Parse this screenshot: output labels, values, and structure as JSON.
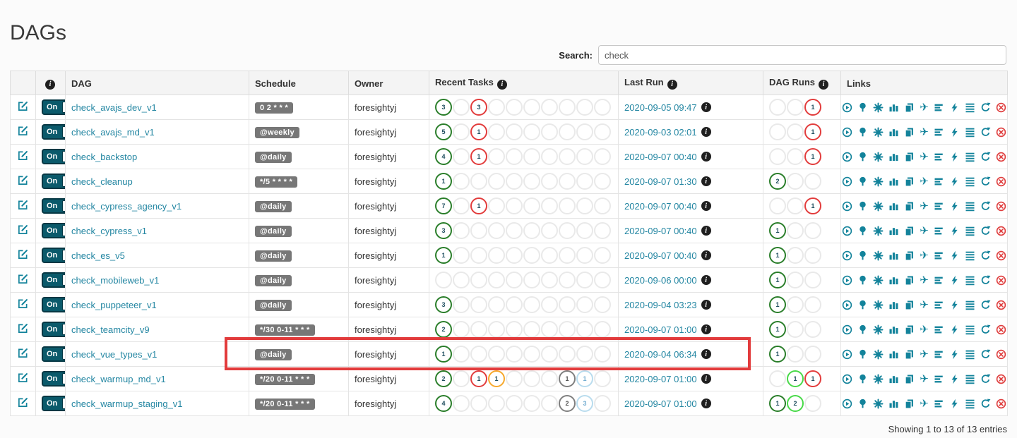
{
  "page": {
    "title": "DAGs"
  },
  "search": {
    "label": "Search:",
    "value": "check"
  },
  "table": {
    "headers": {
      "dag": "DAG",
      "schedule": "Schedule",
      "owner": "Owner",
      "recent_tasks": "Recent Tasks",
      "last_run": "Last Run",
      "dag_runs": "DAG Runs",
      "links": "Links"
    },
    "recent_task_slots": 10,
    "dag_run_slots": 3,
    "state_colors": {
      "success": "#2a7e2a",
      "running": "#47d947",
      "failed": "#e23c3c",
      "upstream_failed": "#f7a82b",
      "queued": "#7f7f7f",
      "none": "#b9dcee",
      "empty": "#e9e9e9"
    },
    "number_colors": {
      "default": "#1f4e5f",
      "queued": "#555555",
      "none": "#74add1"
    },
    "accent": {
      "teal": "#13839b",
      "link": "#2386a2",
      "delete_red": "#df3d3d"
    },
    "links_icons": [
      "trigger-dag",
      "tree-view",
      "graph-view",
      "task-duration",
      "task-tries",
      "landing-times",
      "gantt-view",
      "code-view",
      "logs",
      "refresh",
      "delete-dag"
    ],
    "rows": [
      {
        "dag": "check_avajs_dev_v1",
        "toggle": "On",
        "schedule": "0 2 * * *",
        "owner": "foresightyj",
        "last_run": "2020-09-05 09:47",
        "recent_tasks": [
          {
            "slot": 1,
            "state": "success",
            "count": 3
          },
          {
            "slot": 3,
            "state": "failed",
            "count": 3
          }
        ],
        "dag_runs": [
          {
            "slot": 3,
            "state": "failed",
            "count": 1
          }
        ]
      },
      {
        "dag": "check_avajs_md_v1",
        "toggle": "On",
        "schedule": "@weekly",
        "owner": "foresightyj",
        "last_run": "2020-09-03 02:01",
        "recent_tasks": [
          {
            "slot": 1,
            "state": "success",
            "count": 5
          },
          {
            "slot": 3,
            "state": "failed",
            "count": 1
          }
        ],
        "dag_runs": [
          {
            "slot": 3,
            "state": "failed",
            "count": 1
          }
        ]
      },
      {
        "dag": "check_backstop",
        "toggle": "On",
        "schedule": "@daily",
        "owner": "foresightyj",
        "last_run": "2020-09-07 00:40",
        "recent_tasks": [
          {
            "slot": 1,
            "state": "success",
            "count": 4
          },
          {
            "slot": 3,
            "state": "failed",
            "count": 1
          }
        ],
        "dag_runs": [
          {
            "slot": 3,
            "state": "failed",
            "count": 1
          }
        ]
      },
      {
        "dag": "check_cleanup",
        "toggle": "On",
        "schedule": "*/5 * * * *",
        "owner": "foresightyj",
        "last_run": "2020-09-07 01:30",
        "recent_tasks": [
          {
            "slot": 1,
            "state": "success",
            "count": 1
          }
        ],
        "dag_runs": [
          {
            "slot": 1,
            "state": "success",
            "count": 2
          }
        ]
      },
      {
        "dag": "check_cypress_agency_v1",
        "toggle": "On",
        "schedule": "@daily",
        "owner": "foresightyj",
        "last_run": "2020-09-07 00:40",
        "recent_tasks": [
          {
            "slot": 1,
            "state": "success",
            "count": 7
          },
          {
            "slot": 3,
            "state": "failed",
            "count": 1
          }
        ],
        "dag_runs": [
          {
            "slot": 3,
            "state": "failed",
            "count": 1
          }
        ]
      },
      {
        "dag": "check_cypress_v1",
        "toggle": "On",
        "schedule": "@daily",
        "owner": "foresightyj",
        "last_run": "2020-09-07 00:40",
        "recent_tasks": [
          {
            "slot": 1,
            "state": "success",
            "count": 3
          }
        ],
        "dag_runs": [
          {
            "slot": 1,
            "state": "success",
            "count": 1
          }
        ]
      },
      {
        "dag": "check_es_v5",
        "toggle": "On",
        "schedule": "@daily",
        "owner": "foresightyj",
        "last_run": "2020-09-07 00:40",
        "recent_tasks": [
          {
            "slot": 1,
            "state": "success",
            "count": 1
          }
        ],
        "dag_runs": [
          {
            "slot": 1,
            "state": "success",
            "count": 1
          }
        ]
      },
      {
        "dag": "check_mobileweb_v1",
        "toggle": "On",
        "schedule": "@daily",
        "owner": "foresightyj",
        "last_run": "2020-09-06 00:00",
        "recent_tasks": [],
        "dag_runs": [
          {
            "slot": 1,
            "state": "success",
            "count": 1
          }
        ]
      },
      {
        "dag": "check_puppeteer_v1",
        "toggle": "On",
        "schedule": "@daily",
        "owner": "foresightyj",
        "last_run": "2020-09-04 03:23",
        "recent_tasks": [
          {
            "slot": 1,
            "state": "success",
            "count": 3
          }
        ],
        "dag_runs": [
          {
            "slot": 1,
            "state": "success",
            "count": 1
          }
        ]
      },
      {
        "dag": "check_teamcity_v9",
        "toggle": "On",
        "schedule": "*/30 0-11 * * *",
        "owner": "foresightyj",
        "last_run": "2020-09-07 01:00",
        "recent_tasks": [
          {
            "slot": 1,
            "state": "success",
            "count": 2
          }
        ],
        "dag_runs": [
          {
            "slot": 1,
            "state": "success",
            "count": 1
          }
        ]
      },
      {
        "dag": "check_vue_types_v1",
        "toggle": "On",
        "schedule": "@daily",
        "owner": "foresightyj",
        "last_run": "2020-09-04 06:34",
        "recent_tasks": [
          {
            "slot": 1,
            "state": "success",
            "count": 1
          }
        ],
        "dag_runs": [
          {
            "slot": 1,
            "state": "success",
            "count": 1
          }
        ],
        "highlighted": true
      },
      {
        "dag": "check_warmup_md_v1",
        "toggle": "On",
        "schedule": "*/20 0-11 * * *",
        "owner": "foresightyj",
        "last_run": "2020-09-07 01:00",
        "recent_tasks": [
          {
            "slot": 1,
            "state": "success",
            "count": 2
          },
          {
            "slot": 3,
            "state": "failed",
            "count": 1
          },
          {
            "slot": 4,
            "state": "upstream_failed",
            "count": 1
          },
          {
            "slot": 8,
            "state": "queued",
            "count": 1
          },
          {
            "slot": 9,
            "state": "none",
            "count": 1
          }
        ],
        "dag_runs": [
          {
            "slot": 2,
            "state": "running",
            "count": 1
          },
          {
            "slot": 3,
            "state": "failed",
            "count": 1
          }
        ]
      },
      {
        "dag": "check_warmup_staging_v1",
        "toggle": "On",
        "schedule": "*/20 0-11 * * *",
        "owner": "foresightyj",
        "last_run": "2020-09-07 01:00",
        "recent_tasks": [
          {
            "slot": 1,
            "state": "success",
            "count": 4
          },
          {
            "slot": 8,
            "state": "queued",
            "count": 2
          },
          {
            "slot": 9,
            "state": "none",
            "count": 3
          }
        ],
        "dag_runs": [
          {
            "slot": 1,
            "state": "success",
            "count": 1
          },
          {
            "slot": 2,
            "state": "running",
            "count": 2
          }
        ]
      }
    ]
  },
  "footer": {
    "showing": "Showing 1 to 13 of 13 entries"
  },
  "annotation": {
    "highlight_box_color": "#e23b3c"
  }
}
